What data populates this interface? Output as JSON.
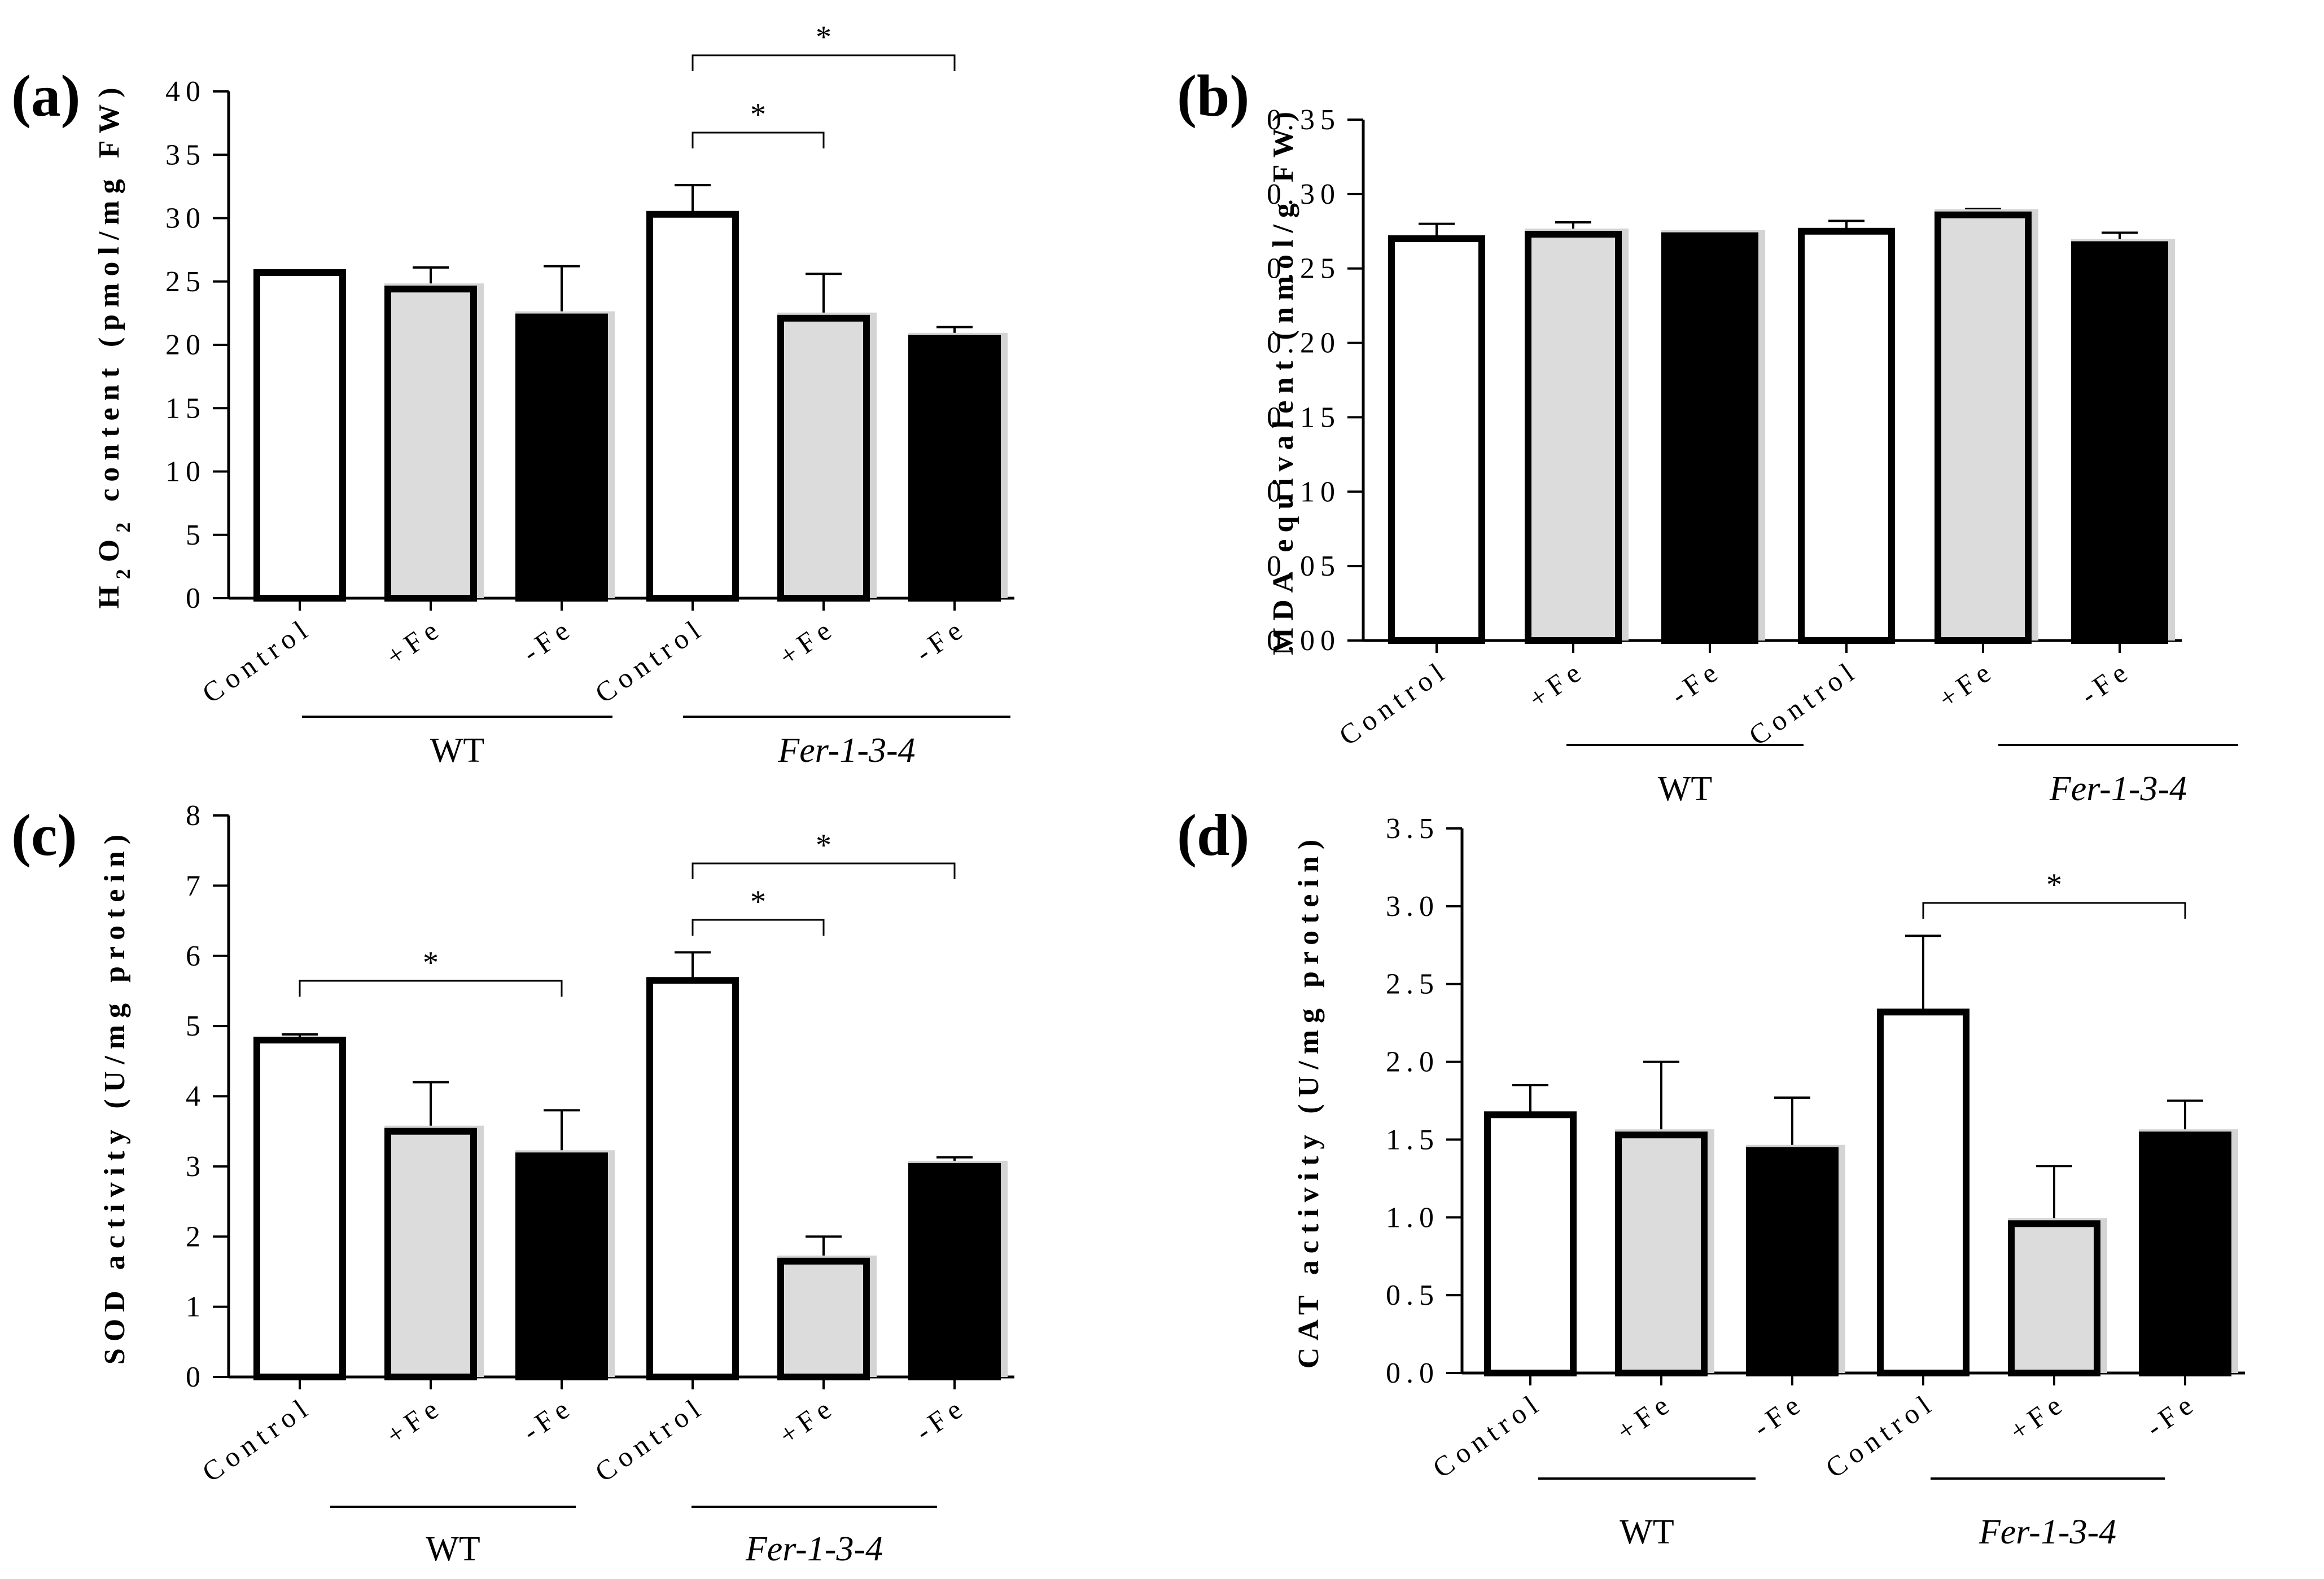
{
  "colors": {
    "control": "#ffffff",
    "plus_fe": "#dcdcdc",
    "minus_fe": "#000000",
    "shadow": "#d4d4d4",
    "ink": "#000000"
  },
  "chart_data": [
    {
      "type": "bar",
      "panel": "(a)",
      "ylabel_html": "H<sub>2</sub>O<sub>2</sub> content (pmol/mg FW)",
      "ylabel_parts": [
        "H",
        "2",
        "O",
        "2",
        " content (pmol/mg FW)"
      ],
      "categories": [
        "Control",
        "+Fe",
        "-Fe",
        "Control",
        "+Fe",
        "-Fe"
      ],
      "groups": [
        "WT",
        "Fer-1-3-4"
      ],
      "values": [
        25.7,
        24.4,
        22.2,
        30.3,
        22.1,
        20.5
      ],
      "errors": [
        0.1,
        1.7,
        4.0,
        2.3,
        3.5,
        0.9
      ],
      "ylim": [
        0,
        40
      ],
      "yticks": [
        "0",
        "5",
        "10",
        "15",
        "20",
        "25",
        "30",
        "35",
        "40"
      ],
      "significance": [
        {
          "from": 3,
          "to": 4,
          "label": "*"
        },
        {
          "from": 3,
          "to": 5,
          "label": "*"
        }
      ]
    },
    {
      "type": "bar",
      "panel": "(b)",
      "ylabel": "MDA equivalent (nmol/g FW)",
      "categories": [
        "Control",
        "+Fe",
        "-Fe",
        "Control",
        "+Fe",
        "-Fe"
      ],
      "groups": [
        "WT",
        "Fer-1-3-4"
      ],
      "values": [
        0.27,
        0.273,
        0.272,
        0.275,
        0.286,
        0.266
      ],
      "errors": [
        0.01,
        0.008,
        0.002,
        0.007,
        0.004,
        0.008
      ],
      "ylim": [
        0,
        0.35
      ],
      "yticks": [
        "0.00",
        "0.05",
        "0.10",
        "0.15",
        "0.20",
        "0.25",
        "0.30",
        "0.35"
      ],
      "significance": []
    },
    {
      "type": "bar",
      "panel": "(c)",
      "ylabel": "SOD activity (U/mg protein)",
      "categories": [
        "Control",
        "+Fe",
        "-Fe",
        "Control",
        "+Fe",
        "-Fe"
      ],
      "groups": [
        "WT",
        "Fer-1-3-4"
      ],
      "values": [
        4.8,
        3.5,
        3.15,
        5.65,
        1.65,
        3.0
      ],
      "errors": [
        0.08,
        0.7,
        0.65,
        0.4,
        0.35,
        0.13
      ],
      "ylim": [
        0,
        8
      ],
      "yticks": [
        "0",
        "1",
        "2",
        "3",
        "4",
        "5",
        "6",
        "7",
        "8"
      ],
      "significance": [
        {
          "from": 0,
          "to": 2,
          "label": "*"
        },
        {
          "from": 3,
          "to": 4,
          "label": "*"
        },
        {
          "from": 3,
          "to": 5,
          "label": "*"
        }
      ]
    },
    {
      "type": "bar",
      "panel": "(d)",
      "ylabel": "CAT activity (U/mg protein)",
      "categories": [
        "Control",
        "+Fe",
        "-Fe",
        "Control",
        "+Fe",
        "-Fe"
      ],
      "groups": [
        "WT",
        "Fer-1-3-4"
      ],
      "values": [
        1.66,
        1.53,
        1.43,
        2.32,
        0.96,
        1.53
      ],
      "errors": [
        0.19,
        0.47,
        0.34,
        0.49,
        0.37,
        0.22
      ],
      "ylim": [
        0,
        3.5
      ],
      "yticks": [
        "0.0",
        "0.5",
        "1.0",
        "1.5",
        "2.0",
        "2.5",
        "3.0",
        "3.5"
      ],
      "significance": [
        {
          "from": 3,
          "to": 5,
          "label": "*"
        }
      ]
    }
  ]
}
